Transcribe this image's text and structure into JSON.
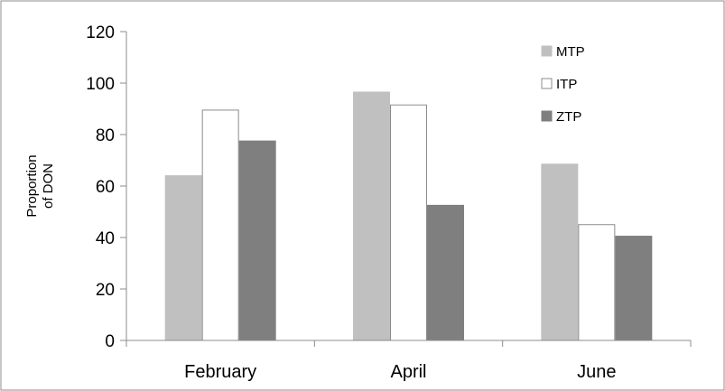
{
  "chart_data": {
    "type": "bar",
    "title": "",
    "xlabel": "",
    "ylabel_lines": [
      "Proportion",
      "of DON"
    ],
    "categories": [
      "February",
      "April",
      "June"
    ],
    "ylim": [
      0,
      120
    ],
    "yticks": [
      0,
      20,
      40,
      60,
      80,
      100,
      120
    ],
    "grid": false,
    "legend_position": "top-right",
    "series": [
      {
        "name": "MTP",
        "values": [
          64,
          96.5,
          68.5
        ],
        "color": "#c0c0c0",
        "stroke": "#c0c0c0"
      },
      {
        "name": "ITP",
        "values": [
          89.5,
          91.5,
          45
        ],
        "color": "#ffffff",
        "stroke": "#8c8c8c"
      },
      {
        "name": "ZTP",
        "values": [
          77.5,
          52.5,
          40.5
        ],
        "color": "#7f7f7f",
        "stroke": "#7f7f7f"
      }
    ]
  }
}
